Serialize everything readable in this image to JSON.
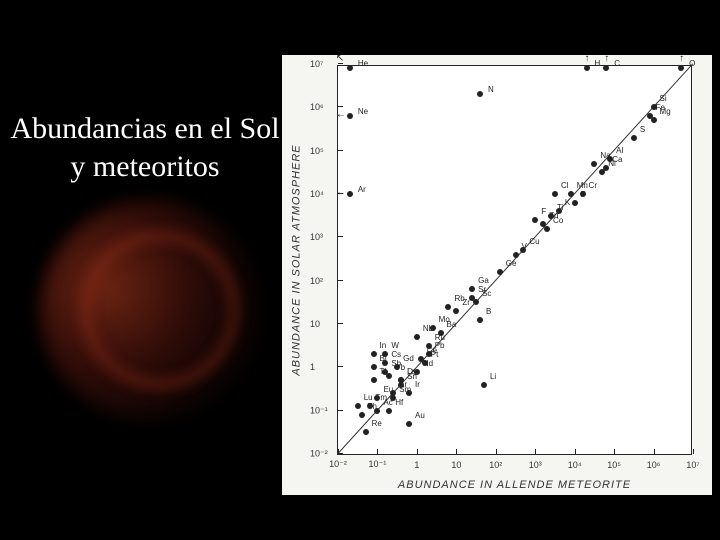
{
  "title": "Abundancias en el Sol y meteoritos",
  "chart": {
    "type": "scatter",
    "xlabel": "ABUNDANCE IN ALLENDE METEORITE",
    "ylabel": "ABUNDANCE IN SOLAR ATMOSPHERE",
    "xscale": "log",
    "yscale": "log",
    "xlim": [
      -2,
      7
    ],
    "ylim": [
      -2,
      7
    ],
    "xticks": [
      -2,
      -1,
      0,
      1,
      2,
      3,
      4,
      5,
      6,
      7
    ],
    "yticks": [
      -2,
      -1,
      0,
      1,
      2,
      3,
      4,
      5,
      6,
      7
    ],
    "xtick_labels": [
      "10⁻²",
      "10⁻¹",
      "1",
      "10",
      "10²",
      "10³",
      "10⁴",
      "10⁵",
      "10⁶",
      "10⁷"
    ],
    "ytick_labels": [
      "10⁻²",
      "10⁻¹",
      "1",
      "10",
      "10²",
      "10³",
      "10⁴",
      "10⁵",
      "10⁶",
      "10⁷"
    ],
    "background_color": "#ffffff",
    "panel_color": "#f5f5f2",
    "border_color": "#222222",
    "point_color": "#222222",
    "point_size": 6,
    "label_fontsize": 8,
    "axis_label_fontsize": 11,
    "tick_fontsize": 9,
    "identity_line": true,
    "outlier_arrows": [
      {
        "label": "He",
        "logx": -1.7,
        "logy": 7.0,
        "direction": "up-left"
      },
      {
        "label": "Ne",
        "logx": -1.7,
        "logy": 5.8,
        "direction": "left"
      },
      {
        "label": "Ar",
        "logx": -1.7,
        "logy": 4.0,
        "direction": "left"
      },
      {
        "label": "H",
        "logx": 4.3,
        "logy": 7.0,
        "direction": "up"
      },
      {
        "label": "C",
        "logx": 4.8,
        "logy": 7.0,
        "direction": "up"
      },
      {
        "label": "N",
        "logx": 1.6,
        "logy": 6.3,
        "direction": "none"
      },
      {
        "label": "O",
        "logx": 6.7,
        "logy": 7.0,
        "direction": "up"
      }
    ],
    "points": [
      {
        "label": "Si",
        "logx": 6.0,
        "logy": 6.0
      },
      {
        "label": "Fe",
        "logx": 5.9,
        "logy": 5.8
      },
      {
        "label": "Mg",
        "logx": 6.0,
        "logy": 5.7
      },
      {
        "label": "S",
        "logx": 5.5,
        "logy": 5.3
      },
      {
        "label": "Al",
        "logx": 4.9,
        "logy": 4.8
      },
      {
        "label": "Na",
        "logx": 4.5,
        "logy": 4.7
      },
      {
        "label": "Ni",
        "logx": 4.7,
        "logy": 4.5
      },
      {
        "label": "Ca",
        "logx": 4.8,
        "logy": 4.6
      },
      {
        "label": "Cr",
        "logx": 4.2,
        "logy": 4.0
      },
      {
        "label": "Mn",
        "logx": 3.9,
        "logy": 4.0
      },
      {
        "label": "Cl",
        "logx": 3.5,
        "logy": 4.0
      },
      {
        "label": "P",
        "logx": 4.0,
        "logy": 3.8
      },
      {
        "label": "K",
        "logx": 3.6,
        "logy": 3.6
      },
      {
        "label": "Ti",
        "logx": 3.4,
        "logy": 3.5
      },
      {
        "label": "F",
        "logx": 3.0,
        "logy": 3.4
      },
      {
        "label": "Zn",
        "logx": 3.2,
        "logy": 3.3
      },
      {
        "label": "Co",
        "logx": 3.3,
        "logy": 3.2
      },
      {
        "label": "Cu",
        "logx": 2.7,
        "logy": 2.7
      },
      {
        "label": "V",
        "logx": 2.5,
        "logy": 2.6
      },
      {
        "label": "Ge",
        "logx": 2.1,
        "logy": 2.2
      },
      {
        "label": "Sc",
        "logx": 1.5,
        "logy": 1.5
      },
      {
        "label": "Sr",
        "logx": 1.4,
        "logy": 1.6
      },
      {
        "label": "Ga",
        "logx": 1.4,
        "logy": 1.8
      },
      {
        "label": "Zr",
        "logx": 1.0,
        "logy": 1.3
      },
      {
        "label": "Rb",
        "logx": 0.8,
        "logy": 1.4
      },
      {
        "label": "B",
        "logx": 1.6,
        "logy": 1.1
      },
      {
        "label": "Ba",
        "logx": 0.6,
        "logy": 0.8
      },
      {
        "label": "Mo",
        "logx": 0.4,
        "logy": 0.9
      },
      {
        "label": "Nb",
        "logx": 0.0,
        "logy": 0.7
      },
      {
        "label": "Ru",
        "logx": 0.3,
        "logy": 0.5
      },
      {
        "label": "Pb",
        "logx": 0.3,
        "logy": 0.3
      },
      {
        "label": "Ce",
        "logx": 0.1,
        "logy": 0.2
      },
      {
        "label": "Pt",
        "logx": 0.2,
        "logy": 0.1
      },
      {
        "label": "Nd",
        "logx": 0.0,
        "logy": -0.1
      },
      {
        "label": "Li",
        "logx": 1.7,
        "logy": -0.4
      },
      {
        "label": "La",
        "logx": -0.4,
        "logy": -0.3
      },
      {
        "label": "Dy",
        "logx": -0.4,
        "logy": -0.3
      },
      {
        "label": "W",
        "logx": -0.8,
        "logy": 0.3
      },
      {
        "label": "In",
        "logx": -1.1,
        "logy": 0.3
      },
      {
        "label": "Cs",
        "logx": -0.8,
        "logy": 0.1
      },
      {
        "label": "Gd",
        "logx": -0.5,
        "logy": 0.0
      },
      {
        "label": "Sn",
        "logx": -0.4,
        "logy": -0.4
      },
      {
        "label": "Sb",
        "logx": -0.8,
        "logy": -0.1
      },
      {
        "label": "Bi",
        "logx": -1.1,
        "logy": 0.0
      },
      {
        "label": "Yb",
        "logx": -0.7,
        "logy": -0.2
      },
      {
        "label": "Ir",
        "logx": -0.2,
        "logy": -0.6
      },
      {
        "label": "Er",
        "logx": -0.6,
        "logy": -0.6
      },
      {
        "label": "Sm",
        "logx": -0.6,
        "logy": -0.7
      },
      {
        "label": "Tl",
        "logx": -1.1,
        "logy": -0.3
      },
      {
        "label": "Eu",
        "logx": -1.0,
        "logy": -0.7
      },
      {
        "label": "Hf",
        "logx": -0.7,
        "logy": -1.0
      },
      {
        "label": "Au",
        "logx": -0.2,
        "logy": -1.3
      },
      {
        "label": "Tm",
        "logx": -1.2,
        "logy": -0.9
      },
      {
        "label": "Ac",
        "logx": -1.0,
        "logy": -1.0
      },
      {
        "label": "Th",
        "logx": -1.4,
        "logy": -1.1
      },
      {
        "label": "Lu",
        "logx": -1.5,
        "logy": -0.9
      },
      {
        "label": "Re",
        "logx": -1.3,
        "logy": -1.5
      }
    ]
  }
}
